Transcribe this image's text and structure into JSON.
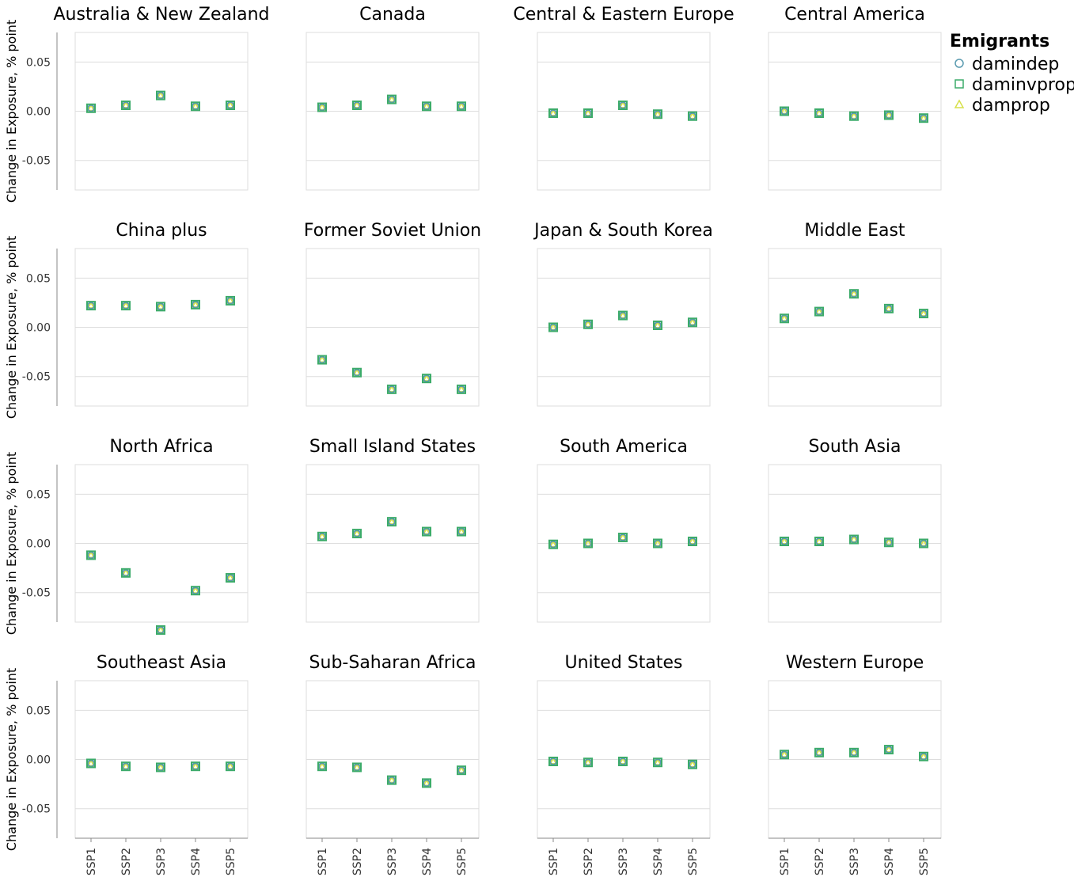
{
  "chart_data": {
    "type": "scatter",
    "ylabel": "Change in Exposure, % point",
    "ylim": [
      -0.08,
      0.08
    ],
    "yticks": [
      0.05,
      0.0,
      -0.05
    ],
    "ytick_labels": [
      "0.05",
      "0.00",
      "-0.05"
    ],
    "categories": [
      "SSP1",
      "SSP2",
      "SSP3",
      "SSP4",
      "SSP5"
    ],
    "grid": "horizontal",
    "legend": {
      "title": "Emigrants",
      "placement": "top-right",
      "entries": [
        {
          "name": "damindep",
          "shape": "circle",
          "color": "#5b9bb0"
        },
        {
          "name": "daminvprop",
          "shape": "square",
          "color": "#3cab6a"
        },
        {
          "name": "damprop",
          "shape": "triangle",
          "color": "#d7e04a"
        }
      ]
    },
    "panels": [
      {
        "title": "Australia & New Zealand",
        "values": [
          0.003,
          0.006,
          0.016,
          0.005,
          0.006
        ]
      },
      {
        "title": "Canada",
        "values": [
          0.004,
          0.006,
          0.012,
          0.005,
          0.005
        ]
      },
      {
        "title": "Central & Eastern Europe",
        "values": [
          -0.002,
          -0.002,
          0.006,
          -0.003,
          -0.005
        ]
      },
      {
        "title": "Central America",
        "values": [
          0.0,
          -0.002,
          -0.005,
          -0.004,
          -0.007
        ]
      },
      {
        "title": "China plus",
        "values": [
          0.022,
          0.022,
          0.021,
          0.023,
          0.027
        ]
      },
      {
        "title": "Former Soviet Union",
        "values": [
          -0.033,
          -0.046,
          -0.063,
          -0.052,
          -0.063
        ]
      },
      {
        "title": "Japan & South Korea",
        "values": [
          0.0,
          0.003,
          0.012,
          0.002,
          0.005
        ]
      },
      {
        "title": "Middle East",
        "values": [
          0.009,
          0.016,
          0.034,
          0.019,
          0.014
        ]
      },
      {
        "title": "North Africa",
        "values": [
          -0.012,
          -0.03,
          -0.088,
          -0.048,
          -0.035
        ]
      },
      {
        "title": "Small Island States",
        "values": [
          0.007,
          0.01,
          0.022,
          0.012,
          0.012
        ]
      },
      {
        "title": "South America",
        "values": [
          -0.001,
          0.0,
          0.006,
          0.0,
          0.002
        ]
      },
      {
        "title": "South Asia",
        "values": [
          0.002,
          0.002,
          0.004,
          0.001,
          0.0
        ]
      },
      {
        "title": "Southeast Asia",
        "values": [
          -0.004,
          -0.007,
          -0.008,
          -0.007,
          -0.007
        ]
      },
      {
        "title": "Sub-Saharan Africa",
        "values": [
          -0.007,
          -0.008,
          -0.021,
          -0.024,
          -0.011
        ]
      },
      {
        "title": "United States",
        "values": [
          -0.002,
          -0.003,
          -0.002,
          -0.003,
          -0.005
        ]
      },
      {
        "title": "Western Europe",
        "values": [
          0.005,
          0.007,
          0.007,
          0.01,
          0.003
        ]
      }
    ]
  }
}
